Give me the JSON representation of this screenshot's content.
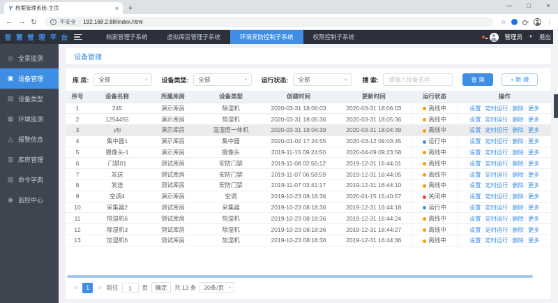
{
  "colors": {
    "accent": "#3d8ee4",
    "status_offline": "#ff9800",
    "status_running": "#3d8ee4",
    "status_closed": "#f5432d"
  },
  "browser": {
    "tab_title": "档案管理系统-主页",
    "tab_close": "×",
    "new_tab": "+",
    "back": "←",
    "forward": "→",
    "reload": "↻",
    "info_glyph": "i",
    "security_label": "不安全",
    "url_sep": "|",
    "url": "192.168.2.88/index.html",
    "star": "☆",
    "menu_dots": "⋮",
    "minimize": "—",
    "maximize": "□",
    "close": "×"
  },
  "app_nav": {
    "logo": "智 慧 管 理 平 台",
    "items": [
      {
        "label": "档案管理子系统",
        "active": false
      },
      {
        "label": "虚拟库房管理子系统",
        "active": false
      },
      {
        "label": "环境安防控制子系统",
        "active": true
      },
      {
        "label": "权限控制子系统",
        "active": false
      }
    ],
    "username": "管理员",
    "user_caret": "▼",
    "logout": "退出"
  },
  "sidebar": {
    "items": [
      {
        "glyph": "◎",
        "icon": "panorama-icon",
        "label": "全景监测",
        "active": false
      },
      {
        "glyph": "▣",
        "icon": "device-icon",
        "label": "设备管理",
        "active": true
      },
      {
        "glyph": "▤",
        "icon": "device-type-icon",
        "label": "设备类型",
        "active": false
      },
      {
        "glyph": "▦",
        "icon": "environment-icon",
        "label": "环境监测",
        "active": false
      },
      {
        "glyph": "◬",
        "icon": "alarm-icon",
        "label": "报警信息",
        "active": false
      },
      {
        "glyph": "▥",
        "icon": "warehouse-icon",
        "label": "库房管理",
        "active": false
      },
      {
        "glyph": "▧",
        "icon": "command-icon",
        "label": "命令字典",
        "active": false
      },
      {
        "glyph": "◉",
        "icon": "monitor-center-icon",
        "label": "监控中心",
        "active": false
      }
    ]
  },
  "main": {
    "title": "设备管理",
    "filters": {
      "warehouse_label": "库  房:",
      "warehouse_value": "全部",
      "type_label": "设备类型:",
      "type_value": "全部",
      "status_label": "运行状态:",
      "status_value": "全部",
      "search_label": "搜  索:",
      "search_placeholder": "请输入设备名称",
      "query_button": "查 询",
      "add_button": "+ 新 增",
      "caret": "▼"
    },
    "table": {
      "columns": [
        "序号",
        "设备名称",
        "所属库房",
        "设备类型",
        "创建时间",
        "更新时间",
        "运行状态",
        "操作"
      ],
      "action_labels": [
        "设置",
        "定时运行",
        "删除",
        "更多"
      ],
      "action_separator": "|",
      "rows": [
        {
          "index": "1",
          "name": "245",
          "warehouse": "演示库房",
          "type": "除湿机",
          "created": "2020-03-31 18:06:03",
          "updated": "2020-03-31 18:06:03",
          "status": "离线中",
          "status_key": "offline",
          "highlight": false
        },
        {
          "index": "2",
          "name": "1254455",
          "warehouse": "演示库房",
          "type": "恒湿机",
          "created": "2020-03-31 18:05:36",
          "updated": "2020-03-31 18:05:36",
          "status": "离线中",
          "status_key": "offline",
          "highlight": false
        },
        {
          "index": "3",
          "name": "yfji",
          "warehouse": "演示库房",
          "type": "温湿度一体机",
          "created": "2020-03-31 18:04:39",
          "updated": "2020-03-31 18:04:39",
          "status": "离线中",
          "status_key": "offline",
          "highlight": true
        },
        {
          "index": "4",
          "name": "集中器1",
          "warehouse": "演示库房",
          "type": "集中器",
          "created": "2020-01-02 17:24:55",
          "updated": "2020-03-12 09:03:45",
          "status": "运行中",
          "status_key": "running",
          "highlight": false
        },
        {
          "index": "5",
          "name": "摄像头-1",
          "warehouse": "演示库房",
          "type": "摄像头",
          "created": "2019-11-15 09:24:50",
          "updated": "2020-04-09 09:23:58",
          "status": "离线中",
          "status_key": "offline",
          "highlight": false
        },
        {
          "index": "6",
          "name": "门禁01",
          "warehouse": "测试库房",
          "type": "安防门禁",
          "created": "2019-11-08 02:56:12",
          "updated": "2019-12-31 16:44:01",
          "status": "离线中",
          "status_key": "offline",
          "highlight": false
        },
        {
          "index": "7",
          "name": "发送",
          "warehouse": "测试库房",
          "type": "安防门禁",
          "created": "2019-11-07 06:58:59",
          "updated": "2019-12-31 16:44:05",
          "status": "离线中",
          "status_key": "offline",
          "highlight": false
        },
        {
          "index": "8",
          "name": "发送",
          "warehouse": "测试库房",
          "type": "安防门禁",
          "created": "2019-11-07 03:41:17",
          "updated": "2019-12-31 16:44:10",
          "status": "离线中",
          "status_key": "offline",
          "highlight": false
        },
        {
          "index": "9",
          "name": "空调4",
          "warehouse": "演示库房",
          "type": "空调",
          "created": "2019-10-23 08:18:36",
          "updated": "2020-01-15 15:40:57",
          "status": "关闭中",
          "status_key": "closed",
          "highlight": false
        },
        {
          "index": "10",
          "name": "采集器2",
          "warehouse": "测试库房",
          "type": "采集器",
          "created": "2019-10-23 08:18:36",
          "updated": "2019-12-31 16:44:18",
          "status": "运行中",
          "status_key": "running",
          "highlight": false
        },
        {
          "index": "11",
          "name": "恒湿机6",
          "warehouse": "测试库房",
          "type": "恒湿机",
          "created": "2019-10-23 08:18:36",
          "updated": "2019-12-31 16:44:24",
          "status": "离线中",
          "status_key": "offline",
          "highlight": false
        },
        {
          "index": "12",
          "name": "除湿机3",
          "warehouse": "测试库房",
          "type": "除湿机",
          "created": "2019-10-23 08:18:36",
          "updated": "2019-12-31 16:44:27",
          "status": "离线中",
          "status_key": "offline",
          "highlight": false
        },
        {
          "index": "13",
          "name": "加湿机6",
          "warehouse": "测试库房",
          "type": "加湿机",
          "created": "2019-10-23 08:18:36",
          "updated": "2019-12-31 16:44:36",
          "status": "离线中",
          "status_key": "offline",
          "highlight": false
        }
      ]
    },
    "pagination": {
      "prev": "<",
      "page": "1",
      "next": ">",
      "goto_label": "前往",
      "goto_value": "1",
      "page_unit": "页",
      "confirm_button": "确定",
      "total": "共 13 条",
      "page_size": "20条/页",
      "caret": "▼"
    }
  }
}
